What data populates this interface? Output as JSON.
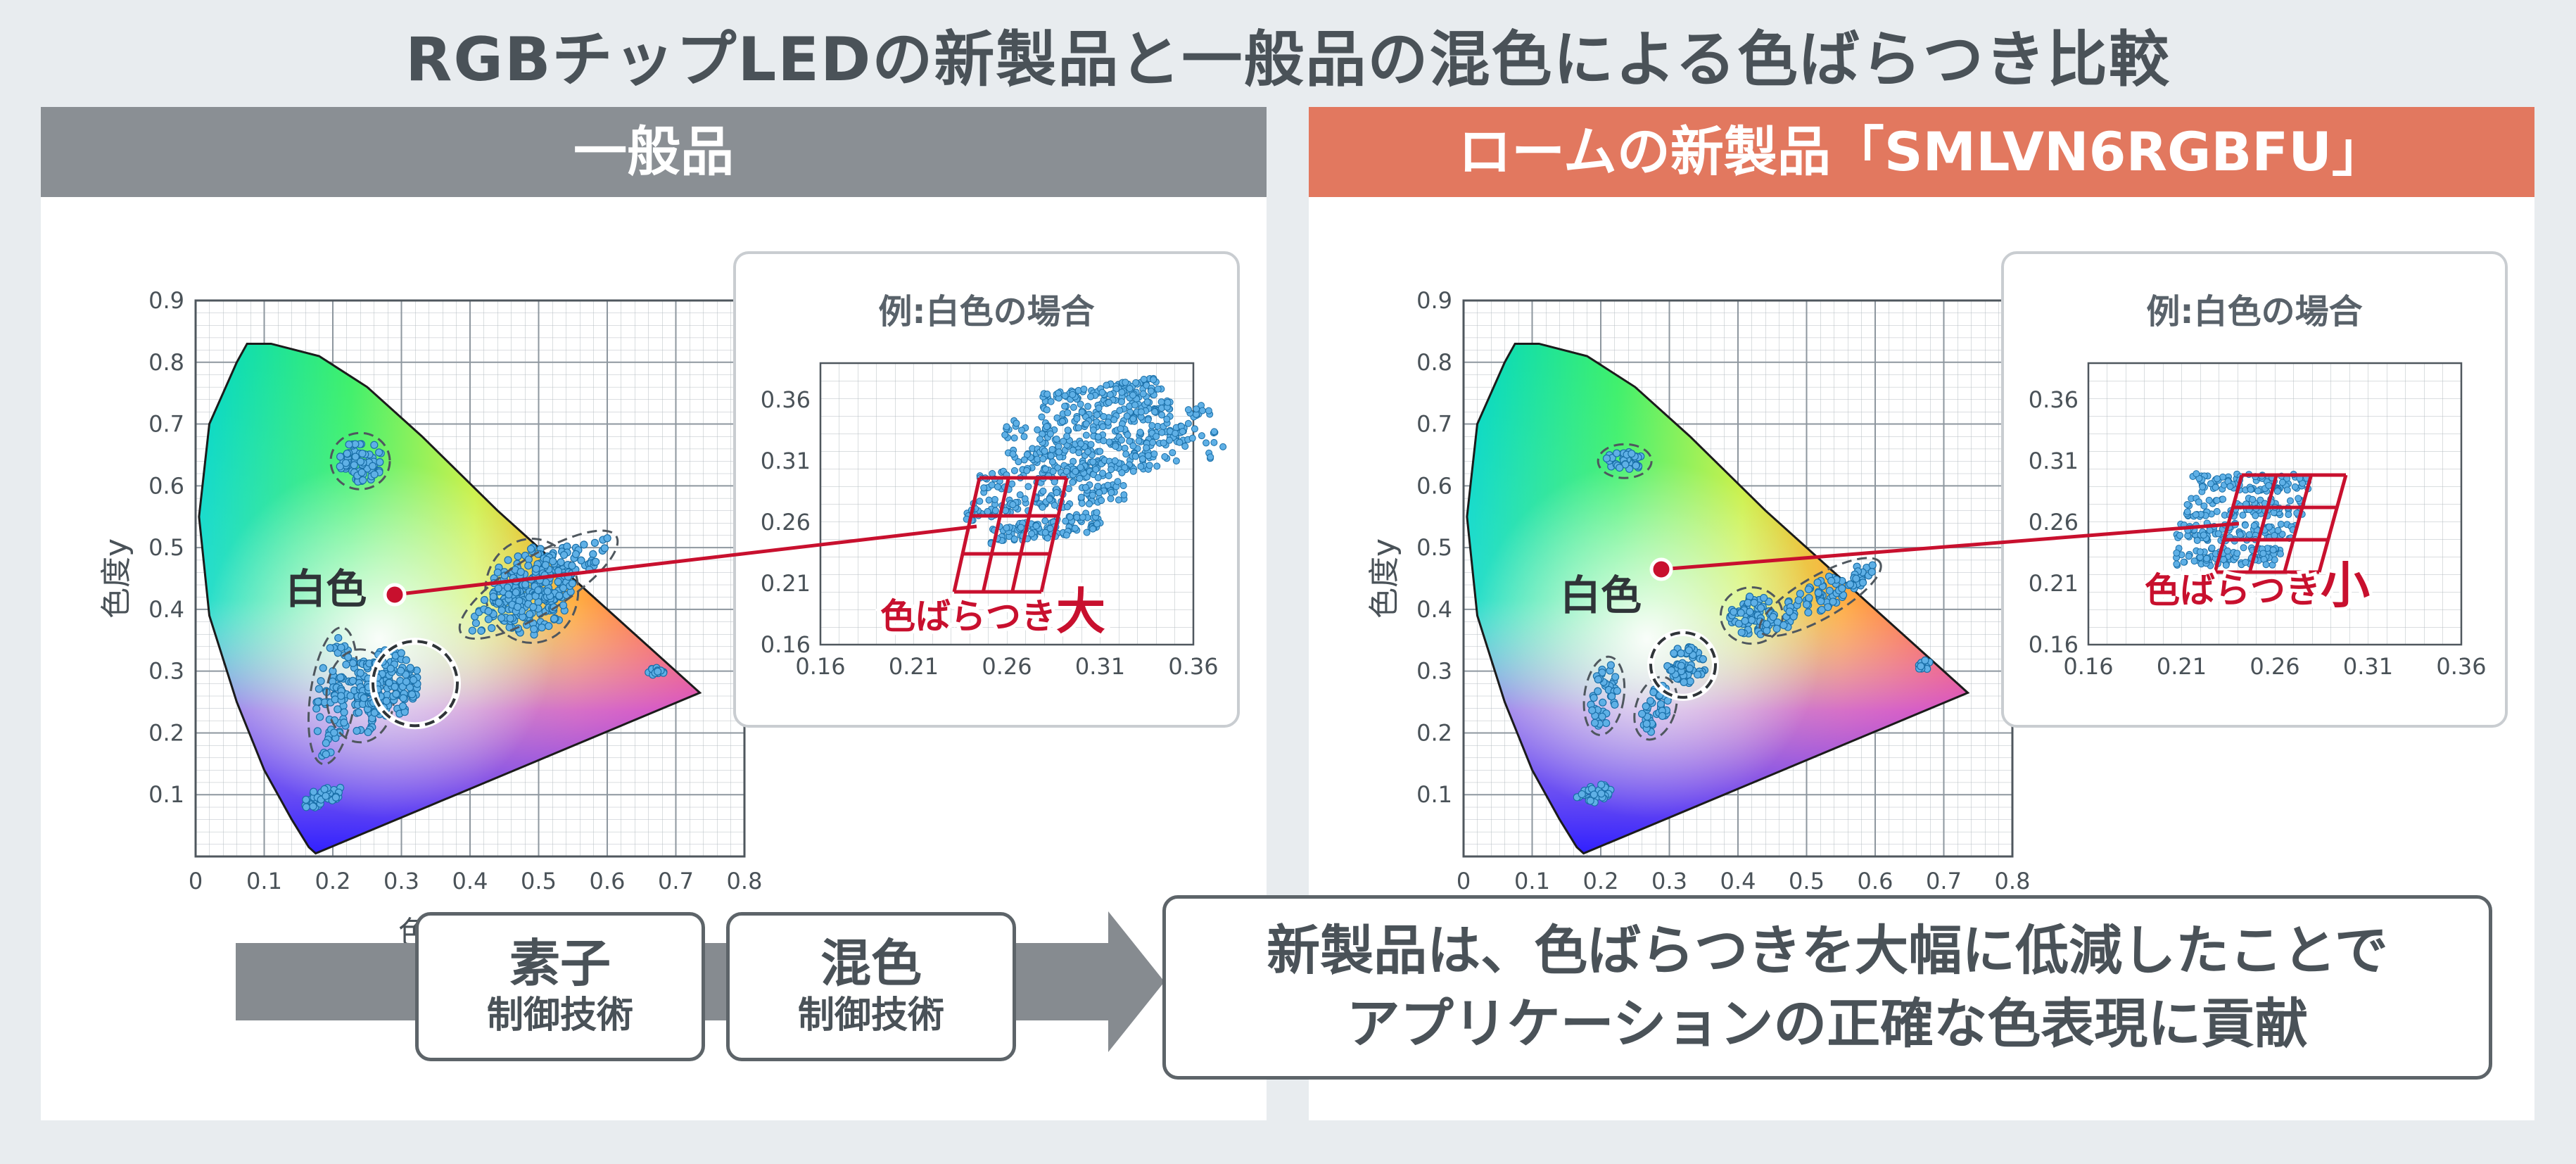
{
  "title": "RGBチップLEDの新製品と一般品の混色による色ばらつき比較",
  "panels": {
    "left": {
      "header": "一般品",
      "white_label": "白色",
      "inset_title": "例:白色の場合",
      "variation_label_prefix": "色ばらつき",
      "variation_label_suffix": "大"
    },
    "right": {
      "header": "ロームの新製品「SMLVN6RGBFU」",
      "white_label": "白色",
      "inset_title": "例:白色の場合",
      "variation_label_prefix": "色ばらつき",
      "variation_label_suffix": "小"
    }
  },
  "axes": {
    "x_label": "色度x",
    "y_label": "色度y",
    "x_ticks": [
      "0",
      "0.1",
      "0.2",
      "0.3",
      "0.4",
      "0.5",
      "0.6",
      "0.7",
      "0.8"
    ],
    "y_ticks": [
      "0.1",
      "0.2",
      "0.3",
      "0.4",
      "0.5",
      "0.6",
      "0.7",
      "0.8",
      "0.9"
    ],
    "inset_x_ticks": [
      "0.16",
      "0.21",
      "0.26",
      "0.31",
      "0.36"
    ],
    "inset_y_ticks": [
      "0.36",
      "0.31",
      "0.26",
      "0.21",
      "0.16"
    ]
  },
  "technologies": [
    {
      "main": "素子",
      "sub": "制御技術"
    },
    {
      "main": "混色",
      "sub": "制御技術"
    }
  ],
  "result": {
    "line1": "新製品は、色ばらつきを大幅に低減したことで",
    "line2": "アプリケーションの正確な色表現に貢献"
  },
  "colors": {
    "accent_red": "#c8102e",
    "header_gray": "#8a8f94",
    "header_orange": "#e2785f",
    "dot_blue": "#5fb0e6"
  }
}
